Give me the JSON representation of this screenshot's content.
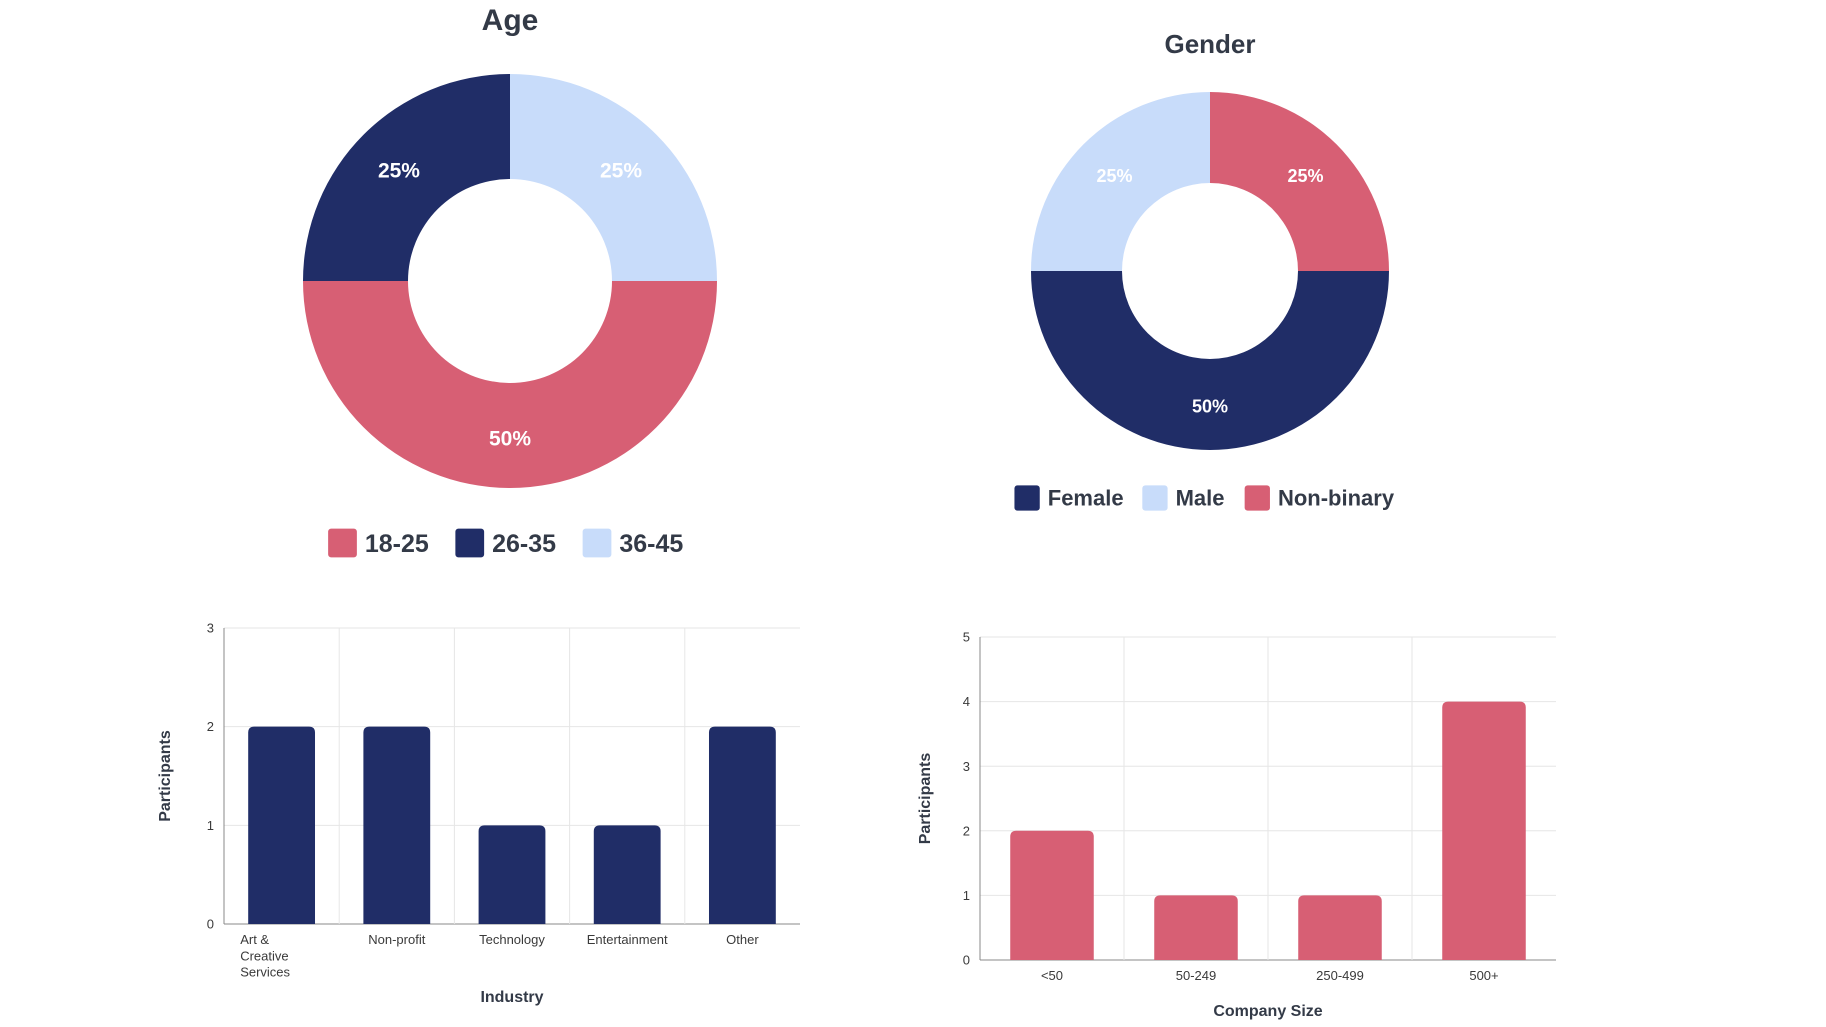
{
  "colors": {
    "navy": "#202d67",
    "pink": "#d75f74",
    "light_blue": "#c8dcfa",
    "title": "#333a47",
    "axis_text": "#3a3a3a",
    "grid": "#e6e6e6"
  },
  "chart_data": [
    {
      "type": "pie",
      "variant": "donut",
      "title": "Age",
      "categories": [
        "18-25",
        "26-35",
        "36-45"
      ],
      "values": [
        50,
        25,
        25
      ],
      "value_labels": [
        "50%",
        "25%",
        "25%"
      ],
      "colors": [
        "#d75f74",
        "#202d67",
        "#c8dcfa"
      ],
      "legend": {
        "position": "bottom",
        "labels": [
          "18-25",
          "26-35",
          "36-45"
        ]
      }
    },
    {
      "type": "pie",
      "variant": "donut",
      "title": "Gender",
      "categories": [
        "Female",
        "Male",
        "Non-binary"
      ],
      "values": [
        50,
        25,
        25
      ],
      "value_labels": [
        "50%",
        "25%",
        "25%"
      ],
      "colors": [
        "#202d67",
        "#c8dcfa",
        "#d75f74"
      ],
      "legend": {
        "position": "bottom",
        "labels": [
          "Female",
          "Male",
          "Non-binary"
        ]
      }
    },
    {
      "type": "bar",
      "title": "",
      "categories": [
        "Art &\nCreative\nServices",
        "Non-profit",
        "Technology",
        "Entertainment",
        "Other"
      ],
      "values": [
        2,
        2,
        1,
        1,
        2
      ],
      "xlabel": "Industry",
      "ylabel": "Participants",
      "ylim": [
        0,
        3
      ],
      "yticks": [
        "0",
        "1",
        "2",
        "3"
      ],
      "grid": true,
      "color": "#202d67"
    },
    {
      "type": "bar",
      "title": "",
      "categories": [
        "<50",
        "50-249",
        "250-499",
        "500+"
      ],
      "values": [
        2,
        1,
        1,
        4
      ],
      "xlabel": "Company Size",
      "ylabel": "Participants",
      "ylim": [
        0,
        5
      ],
      "yticks": [
        "0",
        "1",
        "2",
        "3",
        "4",
        "5"
      ],
      "grid": true,
      "color": "#d75f74"
    }
  ]
}
